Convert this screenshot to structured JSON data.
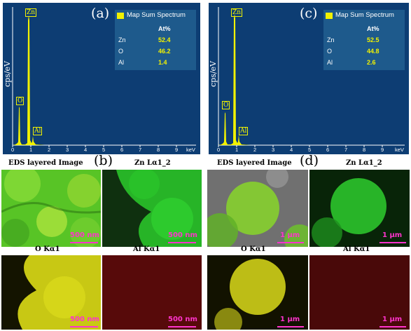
{
  "spectra": [
    {
      "label": "(a)",
      "ylabel": "cps/eV",
      "legend": "Map Sum Spectrum",
      "table_header": "At%",
      "rows": [
        {
          "el": "Zn",
          "val": "52.4"
        },
        {
          "el": "O",
          "val": "46.2"
        },
        {
          "el": "Al",
          "val": "1.4"
        }
      ],
      "peaks": {
        "zn": "Zn",
        "o": "O",
        "al": "Al"
      },
      "ticks": [
        "0",
        "1",
        "2",
        "3",
        "4",
        "5",
        "6",
        "7",
        "8",
        "9"
      ],
      "unit": "keV"
    },
    {
      "label": "(c)",
      "ylabel": "cps/eV",
      "legend": "Map Sum Spectrum",
      "table_header": "At%",
      "rows": [
        {
          "el": "Zn",
          "val": "52.5"
        },
        {
          "el": "O",
          "val": "44.8"
        },
        {
          "el": "Al",
          "val": "2.6"
        }
      ],
      "peaks": {
        "zn": "Zn",
        "o": "O",
        "al": "Al"
      },
      "ticks": [
        "0",
        "1",
        "2",
        "3",
        "4",
        "5",
        "6",
        "7",
        "8",
        "9"
      ],
      "unit": "keV"
    }
  ],
  "maps_b": {
    "label": "(b)",
    "tiles": [
      {
        "title": "EDS layered Image",
        "scale": "500 nm"
      },
      {
        "title": "Zn Lα1_2",
        "scale": "500 nm"
      },
      {
        "title": "O Kα1",
        "scale": "500 nm"
      },
      {
        "title": "Al Kα1",
        "scale": "500 nm"
      }
    ]
  },
  "maps_d": {
    "label": "(d)",
    "tiles": [
      {
        "title": "EDS layered Image",
        "scale": "1 μm"
      },
      {
        "title": "Zn Lα1_2",
        "scale": "1 μm"
      },
      {
        "title": "O Kα1",
        "scale": "1 μm"
      },
      {
        "title": "Al Kα1",
        "scale": "1 μm"
      }
    ]
  },
  "colors": {
    "spectrum_bg": "#0d3d73",
    "peak": "#f2f200",
    "zn_map": "#22cc22",
    "o_map": "#e0e000",
    "al_map": "#cc1111",
    "scale": "#ff33cc"
  }
}
